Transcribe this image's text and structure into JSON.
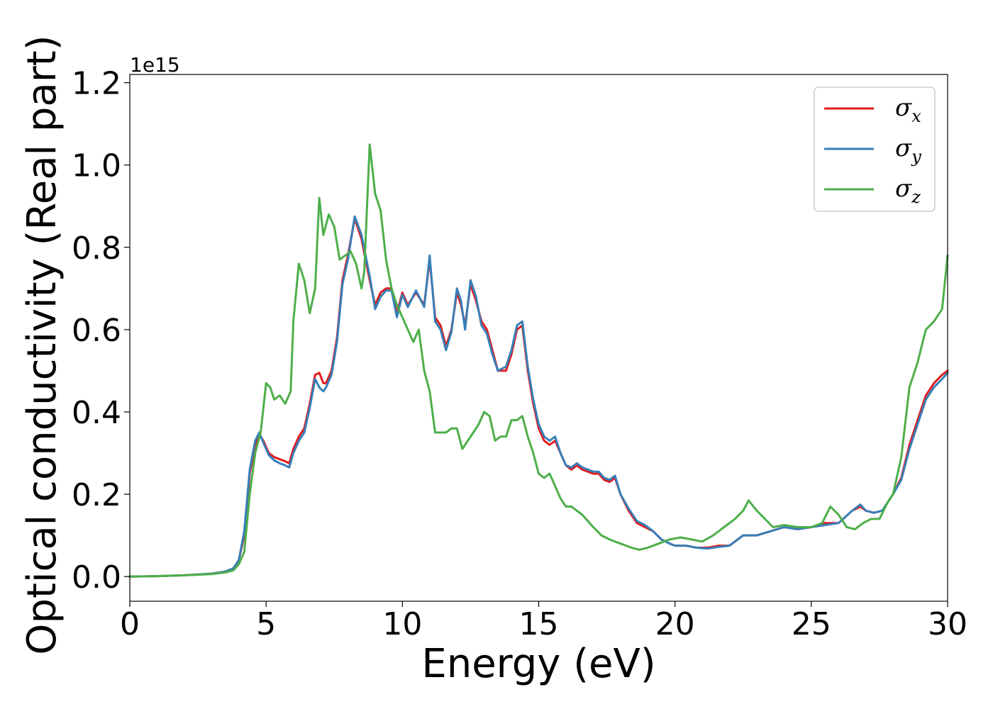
{
  "chart_data": {
    "type": "line",
    "xlabel": "Energy (eV)",
    "ylabel": "Optical conductivity (Real part)",
    "y_offset_label": "1e15",
    "xlim": [
      0,
      30
    ],
    "ylim": [
      -0.06,
      1.22
    ],
    "x_ticks": [
      0,
      5,
      10,
      15,
      20,
      25,
      30
    ],
    "x_tick_labels": [
      "0",
      "5",
      "10",
      "15",
      "20",
      "25",
      "30"
    ],
    "y_ticks": [
      0.0,
      0.2,
      0.4,
      0.6,
      0.8,
      1.0,
      1.2
    ],
    "y_tick_labels": [
      "0.0",
      "0.2",
      "0.4",
      "0.6",
      "0.8",
      "1.0",
      "1.2"
    ],
    "grid": false,
    "legend_position": "top-right",
    "series": [
      {
        "name": "σ",
        "sub": "x",
        "color": "#e41a1c",
        "x": [
          0,
          1,
          2,
          3,
          3.5,
          3.8,
          4.0,
          4.2,
          4.4,
          4.6,
          4.75,
          4.9,
          5.1,
          5.3,
          5.5,
          5.7,
          5.85,
          6.0,
          6.2,
          6.4,
          6.6,
          6.8,
          6.95,
          7.1,
          7.2,
          7.4,
          7.6,
          7.8,
          8.0,
          8.25,
          8.5,
          8.8,
          9.0,
          9.2,
          9.4,
          9.6,
          9.8,
          10.0,
          10.2,
          10.5,
          10.8,
          11.0,
          11.2,
          11.4,
          11.6,
          11.8,
          12.0,
          12.15,
          12.3,
          12.5,
          12.7,
          12.9,
          13.1,
          13.3,
          13.5,
          13.8,
          14.0,
          14.2,
          14.4,
          14.6,
          14.8,
          15.0,
          15.2,
          15.4,
          15.6,
          15.8,
          16.0,
          16.2,
          16.4,
          16.6,
          16.8,
          17.0,
          17.2,
          17.4,
          17.6,
          17.8,
          18.0,
          18.3,
          18.6,
          18.9,
          19.2,
          19.5,
          19.8,
          20.0,
          20.4,
          20.8,
          21.2,
          21.6,
          22.0,
          22.5,
          23.0,
          23.5,
          24.0,
          24.5,
          25.0,
          25.5,
          26.0,
          26.5,
          26.8,
          27.0,
          27.3,
          27.6,
          28.0,
          28.3,
          28.6,
          28.9,
          29.2,
          29.5,
          29.8,
          30.0
        ],
        "values": [
          0,
          0.001,
          0.003,
          0.007,
          0.012,
          0.02,
          0.04,
          0.1,
          0.25,
          0.32,
          0.345,
          0.33,
          0.3,
          0.29,
          0.285,
          0.28,
          0.275,
          0.31,
          0.34,
          0.36,
          0.42,
          0.49,
          0.495,
          0.47,
          0.47,
          0.5,
          0.58,
          0.72,
          0.78,
          0.87,
          0.82,
          0.72,
          0.66,
          0.69,
          0.7,
          0.7,
          0.64,
          0.69,
          0.66,
          0.69,
          0.66,
          0.77,
          0.63,
          0.61,
          0.56,
          0.6,
          0.69,
          0.66,
          0.61,
          0.71,
          0.67,
          0.62,
          0.6,
          0.55,
          0.5,
          0.5,
          0.54,
          0.6,
          0.61,
          0.5,
          0.42,
          0.36,
          0.33,
          0.32,
          0.33,
          0.3,
          0.27,
          0.26,
          0.27,
          0.26,
          0.255,
          0.25,
          0.25,
          0.235,
          0.23,
          0.24,
          0.2,
          0.16,
          0.13,
          0.12,
          0.11,
          0.09,
          0.08,
          0.075,
          0.075,
          0.07,
          0.07,
          0.075,
          0.075,
          0.1,
          0.1,
          0.11,
          0.12,
          0.115,
          0.12,
          0.13,
          0.13,
          0.16,
          0.17,
          0.16,
          0.155,
          0.16,
          0.2,
          0.24,
          0.32,
          0.38,
          0.44,
          0.47,
          0.49,
          0.5
        ]
      },
      {
        "name": "σ",
        "sub": "y",
        "color": "#377eb8",
        "x": [
          0,
          1,
          2,
          3,
          3.5,
          3.8,
          4.0,
          4.2,
          4.4,
          4.6,
          4.75,
          4.9,
          5.1,
          5.3,
          5.5,
          5.7,
          5.85,
          6.0,
          6.2,
          6.4,
          6.6,
          6.8,
          6.95,
          7.1,
          7.2,
          7.4,
          7.6,
          7.8,
          8.0,
          8.25,
          8.5,
          8.8,
          9.0,
          9.2,
          9.4,
          9.6,
          9.8,
          10.0,
          10.2,
          10.5,
          10.8,
          11.0,
          11.2,
          11.4,
          11.6,
          11.8,
          12.0,
          12.15,
          12.3,
          12.5,
          12.7,
          12.9,
          13.1,
          13.3,
          13.5,
          13.8,
          14.0,
          14.2,
          14.4,
          14.6,
          14.8,
          15.0,
          15.2,
          15.4,
          15.6,
          15.8,
          16.0,
          16.2,
          16.4,
          16.6,
          16.8,
          17.0,
          17.2,
          17.4,
          17.6,
          17.8,
          18.0,
          18.3,
          18.6,
          18.9,
          19.2,
          19.5,
          19.8,
          20.0,
          20.4,
          20.8,
          21.2,
          21.6,
          22.0,
          22.5,
          23.0,
          23.5,
          24.0,
          24.5,
          25.0,
          25.5,
          26.0,
          26.5,
          26.8,
          27.0,
          27.3,
          27.6,
          28.0,
          28.3,
          28.6,
          28.9,
          29.2,
          29.5,
          29.8,
          30.0
        ],
        "values": [
          0,
          0.001,
          0.003,
          0.007,
          0.012,
          0.02,
          0.04,
          0.11,
          0.26,
          0.33,
          0.35,
          0.325,
          0.295,
          0.282,
          0.275,
          0.27,
          0.265,
          0.3,
          0.33,
          0.35,
          0.41,
          0.48,
          0.46,
          0.45,
          0.46,
          0.49,
          0.57,
          0.71,
          0.77,
          0.875,
          0.83,
          0.73,
          0.65,
          0.68,
          0.695,
          0.695,
          0.63,
          0.685,
          0.655,
          0.695,
          0.655,
          0.78,
          0.62,
          0.6,
          0.55,
          0.595,
          0.7,
          0.67,
          0.6,
          0.72,
          0.68,
          0.61,
          0.59,
          0.54,
          0.5,
          0.51,
          0.55,
          0.61,
          0.62,
          0.51,
          0.43,
          0.37,
          0.34,
          0.33,
          0.34,
          0.3,
          0.27,
          0.265,
          0.275,
          0.265,
          0.26,
          0.255,
          0.255,
          0.24,
          0.235,
          0.245,
          0.2,
          0.165,
          0.135,
          0.125,
          0.11,
          0.09,
          0.08,
          0.075,
          0.075,
          0.07,
          0.068,
          0.072,
          0.075,
          0.1,
          0.1,
          0.11,
          0.12,
          0.115,
          0.12,
          0.125,
          0.13,
          0.16,
          0.175,
          0.16,
          0.155,
          0.16,
          0.2,
          0.235,
          0.31,
          0.37,
          0.43,
          0.46,
          0.48,
          0.495
        ]
      },
      {
        "name": "σ",
        "sub": "z",
        "color": "#4daf4a",
        "x": [
          0,
          1,
          2,
          3,
          3.5,
          3.8,
          4.0,
          4.2,
          4.4,
          4.6,
          4.8,
          5.0,
          5.15,
          5.3,
          5.5,
          5.7,
          5.9,
          6.0,
          6.2,
          6.4,
          6.6,
          6.8,
          6.95,
          7.1,
          7.3,
          7.5,
          7.7,
          7.9,
          8.1,
          8.3,
          8.5,
          8.6,
          8.8,
          9.0,
          9.2,
          9.4,
          9.6,
          9.8,
          10.0,
          10.2,
          10.4,
          10.6,
          10.8,
          11.0,
          11.2,
          11.4,
          11.6,
          11.8,
          12.0,
          12.2,
          12.4,
          12.6,
          12.8,
          13.0,
          13.2,
          13.4,
          13.6,
          13.8,
          14.0,
          14.2,
          14.4,
          14.6,
          14.8,
          15.0,
          15.2,
          15.4,
          15.6,
          15.8,
          16.0,
          16.2,
          16.4,
          16.6,
          16.8,
          17.0,
          17.3,
          17.6,
          18.0,
          18.4,
          18.7,
          19.0,
          19.4,
          19.8,
          20.2,
          20.6,
          21.0,
          21.4,
          21.8,
          22.2,
          22.5,
          22.7,
          23.0,
          23.3,
          23.6,
          24.0,
          24.5,
          25.0,
          25.4,
          25.7,
          26.0,
          26.3,
          26.6,
          26.9,
          27.2,
          27.5,
          27.8,
          28.0,
          28.3,
          28.6,
          28.9,
          29.2,
          29.5,
          29.8,
          30.0
        ],
        "values": [
          0,
          0.001,
          0.003,
          0.006,
          0.01,
          0.015,
          0.03,
          0.06,
          0.2,
          0.3,
          0.35,
          0.47,
          0.46,
          0.43,
          0.44,
          0.42,
          0.45,
          0.62,
          0.76,
          0.72,
          0.64,
          0.7,
          0.92,
          0.83,
          0.88,
          0.85,
          0.77,
          0.78,
          0.79,
          0.76,
          0.7,
          0.74,
          1.05,
          0.93,
          0.89,
          0.77,
          0.7,
          0.66,
          0.63,
          0.6,
          0.57,
          0.6,
          0.5,
          0.45,
          0.35,
          0.35,
          0.35,
          0.36,
          0.36,
          0.31,
          0.33,
          0.35,
          0.37,
          0.4,
          0.39,
          0.33,
          0.34,
          0.34,
          0.38,
          0.38,
          0.39,
          0.34,
          0.3,
          0.25,
          0.24,
          0.25,
          0.22,
          0.19,
          0.17,
          0.17,
          0.16,
          0.15,
          0.135,
          0.12,
          0.1,
          0.09,
          0.08,
          0.07,
          0.065,
          0.07,
          0.08,
          0.09,
          0.095,
          0.09,
          0.085,
          0.1,
          0.12,
          0.14,
          0.16,
          0.185,
          0.16,
          0.14,
          0.12,
          0.125,
          0.12,
          0.12,
          0.13,
          0.17,
          0.15,
          0.12,
          0.115,
          0.13,
          0.14,
          0.14,
          0.18,
          0.2,
          0.29,
          0.46,
          0.52,
          0.6,
          0.62,
          0.65,
          0.78
        ]
      }
    ]
  }
}
